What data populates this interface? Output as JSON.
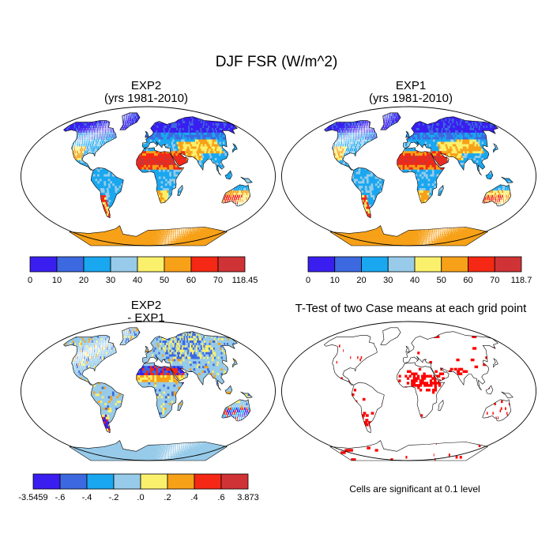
{
  "figure": {
    "title": "DJF FSR (W/m^2)"
  },
  "panels": [
    {
      "id": "exp2",
      "title": "EXP2",
      "subtitle": "(yrs 1981-2010)"
    },
    {
      "id": "exp1",
      "title": "EXP1",
      "subtitle": "(yrs 1981-2010)"
    },
    {
      "id": "diff",
      "title": "EXP2",
      "subtitle": "- EXP1"
    },
    {
      "id": "ttest",
      "title": "T-Test of two Case means at each grid point"
    }
  ],
  "footnote": "Cells are significant at 0.1 level",
  "chart_data": [
    {
      "type": "heatmap",
      "title": "EXP2 (yrs 1981-2010)",
      "variable": "DJF FSR",
      "units": "W/m^2",
      "colorbar": {
        "labels": [
          "0",
          "10",
          "20",
          "30",
          "40",
          "50",
          "60",
          "70",
          "118.45"
        ],
        "colors": [
          "#3a1ef0",
          "#3c69e0",
          "#19a7f0",
          "#97cbe9",
          "#fbf06c",
          "#f7a118",
          "#f42814",
          "#d03335"
        ]
      }
    },
    {
      "type": "heatmap",
      "title": "EXP1 (yrs 1981-2010)",
      "variable": "DJF FSR",
      "units": "W/m^2",
      "colorbar": {
        "labels": [
          "0",
          "10",
          "20",
          "30",
          "40",
          "50",
          "60",
          "70",
          "118.7"
        ],
        "colors": [
          "#3a1ef0",
          "#3c69e0",
          "#19a7f0",
          "#97cbe9",
          "#fbf06c",
          "#f7a118",
          "#f42814",
          "#d03335"
        ]
      }
    },
    {
      "type": "heatmap",
      "title": "EXP2 - EXP1",
      "variable": "DJF FSR difference",
      "units": "W/m^2",
      "colorbar": {
        "labels": [
          "-3.5459",
          "-.6",
          "-.4",
          "-.2",
          ".0",
          ".2",
          ".4",
          ".6",
          "3.873"
        ],
        "colors": [
          "#3a1ef0",
          "#3c69e0",
          "#19a7f0",
          "#97cbe9",
          "#fbf06c",
          "#f7a118",
          "#f42814",
          "#d03335"
        ]
      }
    },
    {
      "type": "heatmap",
      "title": "T-Test of two Case means at each grid point",
      "significance_level": 0.1,
      "significant_color": "#ff0000"
    }
  ]
}
